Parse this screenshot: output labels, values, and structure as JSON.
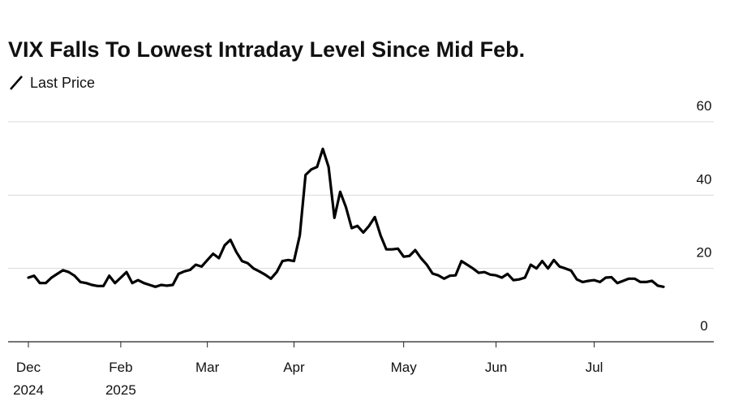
{
  "chart_data": {
    "type": "line",
    "title": "VIX Falls To Lowest Intraday Level Since Mid Feb.",
    "categories": [
      "Dec",
      null,
      null,
      null,
      null,
      null,
      null,
      null,
      null,
      null,
      null,
      null,
      null,
      null,
      null,
      null,
      "Feb",
      null,
      null,
      null,
      null,
      null,
      null,
      null,
      null,
      null,
      null,
      null,
      null,
      null,
      null,
      "Mar",
      null,
      null,
      null,
      null,
      null,
      null,
      null,
      null,
      null,
      null,
      null,
      null,
      null,
      null,
      "Apr",
      null,
      null,
      null,
      null,
      null,
      null,
      null,
      null,
      null,
      null,
      null,
      null,
      null,
      null,
      null,
      null,
      null,
      null,
      "May",
      null,
      null,
      null,
      null,
      null,
      null,
      null,
      null,
      null,
      null,
      null,
      null,
      null,
      null,
      null,
      "Jun",
      null,
      null,
      null,
      null,
      null,
      null,
      null,
      null,
      null,
      null,
      null,
      null,
      null,
      null,
      null,
      null,
      "Jul",
      null,
      null,
      null,
      null,
      null,
      null,
      null,
      null,
      null,
      null,
      null,
      null
    ],
    "years": [
      "2024",
      null,
      null,
      null,
      null,
      null,
      null,
      null,
      null,
      null,
      null,
      null,
      null,
      null,
      null,
      null,
      "2025",
      null,
      null,
      null,
      null,
      null,
      null,
      null,
      null,
      null,
      null,
      null,
      null,
      null,
      null,
      null,
      null,
      null,
      null,
      null,
      null,
      null,
      null,
      null,
      null,
      null,
      null,
      null,
      null,
      null,
      null,
      null,
      null,
      null,
      null,
      null,
      null,
      null,
      null,
      null,
      null,
      null,
      null,
      null,
      null,
      null,
      null,
      null,
      null,
      null,
      null,
      null,
      null,
      null,
      null,
      null,
      null,
      null,
      null,
      null,
      null,
      null,
      null,
      null,
      null,
      null,
      null,
      null,
      null,
      null,
      null,
      null,
      null,
      null,
      null,
      null,
      null,
      null,
      null,
      null,
      null,
      null,
      null,
      null,
      null,
      null,
      null,
      null,
      null,
      null,
      null,
      null,
      null,
      null,
      null
    ],
    "series": [
      {
        "name": "Last Price",
        "color": "#000000",
        "values": [
          17.5,
          18,
          16,
          16,
          17.5,
          18.5,
          19.5,
          19,
          18,
          16.3,
          16,
          15.5,
          15.2,
          15.2,
          18,
          16,
          17.5,
          19,
          16,
          16.8,
          16,
          15.5,
          15,
          15.5,
          15.3,
          15.5,
          18.5,
          19.2,
          19.6,
          21,
          20.5,
          22.3,
          24,
          22.8,
          26.3,
          27.8,
          24.5,
          22,
          21.4,
          20,
          19.2,
          18.3,
          17.2,
          19,
          22,
          22.3,
          22,
          29,
          45.5,
          47,
          47.7,
          52.6,
          47.7,
          33.8,
          40.9,
          36.7,
          31,
          31.6,
          29.8,
          31.6,
          34,
          29,
          25.2,
          25.2,
          25.4,
          23.2,
          23.4,
          25,
          22.8,
          21,
          18.6,
          18.1,
          17.2,
          18,
          18.1,
          22,
          21,
          20,
          18.8,
          19,
          18.3,
          18.1,
          17.5,
          18.5,
          16.8,
          17,
          17.5,
          21,
          20,
          22,
          20,
          22.3,
          20.5,
          20,
          19.4,
          17,
          16.3,
          16.6,
          16.8,
          16.3,
          17.5,
          17.6,
          16,
          16.6,
          17.2,
          17.2,
          16.3,
          16.3,
          16.6,
          15.3,
          15
        ]
      }
    ],
    "ylim": [
      0,
      60
    ],
    "yticks": [
      0,
      20,
      40,
      60
    ],
    "grid": true
  }
}
